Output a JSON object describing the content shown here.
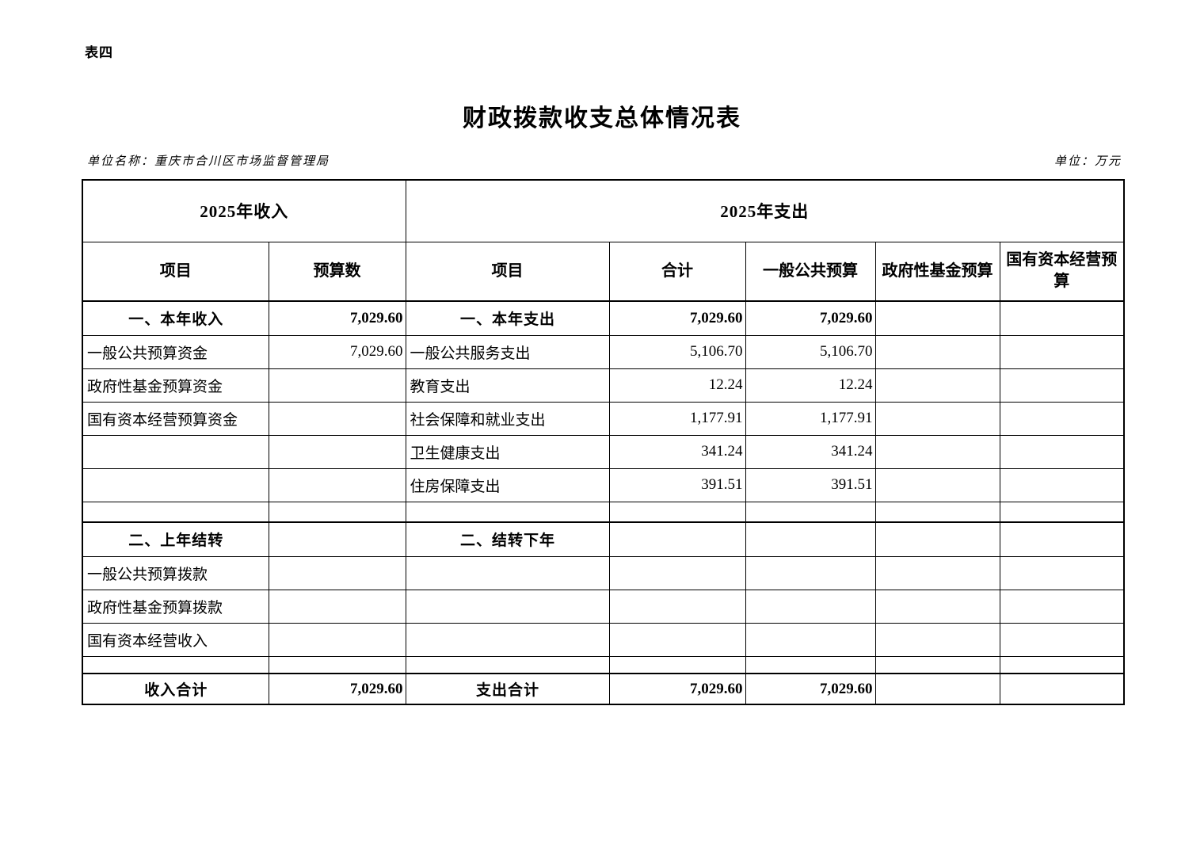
{
  "page": {
    "sheet_label": "表四",
    "title": "财政拨款收支总体情况表",
    "unit_name": "单位名称：重庆市合川区市场监督管理局",
    "unit_measure": "单位：万元"
  },
  "colors": {
    "text": "#000000",
    "border": "#000000",
    "background": "#ffffff"
  },
  "table": {
    "group_headers": {
      "income": "2025年收入",
      "expenditure": "2025年支出"
    },
    "column_headers": [
      "项目",
      "预算数",
      "项目",
      "合计",
      "一般公共预算",
      "政府性基金预算",
      "国有资本经营预算"
    ],
    "rows": [
      {
        "type": "section",
        "income_item": "一、本年收入",
        "income_budget": "7,029.60",
        "expense_item": "一、本年支出",
        "expense_total": "7,029.60",
        "general_public_budget": "7,029.60",
        "government_fund_budget": "",
        "state_capital_budget": ""
      },
      {
        "type": "data",
        "income_item": "一般公共预算资金",
        "income_budget": "7,029.60",
        "expense_item": "一般公共服务支出",
        "expense_total": "5,106.70",
        "general_public_budget": "5,106.70",
        "government_fund_budget": "",
        "state_capital_budget": ""
      },
      {
        "type": "data",
        "income_item": "政府性基金预算资金",
        "income_budget": "",
        "expense_item": "教育支出",
        "expense_total": "12.24",
        "general_public_budget": "12.24",
        "government_fund_budget": "",
        "state_capital_budget": ""
      },
      {
        "type": "data",
        "income_item": "国有资本经营预算资金",
        "income_budget": "",
        "expense_item": "社会保障和就业支出",
        "expense_total": "1,177.91",
        "general_public_budget": "1,177.91",
        "government_fund_budget": "",
        "state_capital_budget": ""
      },
      {
        "type": "data",
        "income_item": "",
        "income_budget": "",
        "expense_item": "卫生健康支出",
        "expense_total": "341.24",
        "general_public_budget": "341.24",
        "government_fund_budget": "",
        "state_capital_budget": ""
      },
      {
        "type": "data",
        "income_item": "",
        "income_budget": "",
        "expense_item": "住房保障支出",
        "expense_total": "391.51",
        "general_public_budget": "391.51",
        "government_fund_budget": "",
        "state_capital_budget": ""
      },
      {
        "type": "spacer",
        "income_item": "",
        "income_budget": "",
        "expense_item": "",
        "expense_total": "",
        "general_public_budget": "",
        "government_fund_budget": "",
        "state_capital_budget": ""
      },
      {
        "type": "section",
        "income_item": "二、上年结转",
        "income_budget": "",
        "expense_item": "二、结转下年",
        "expense_total": "",
        "general_public_budget": "",
        "government_fund_budget": "",
        "state_capital_budget": ""
      },
      {
        "type": "data",
        "income_item": "一般公共预算拨款",
        "income_budget": "",
        "expense_item": "",
        "expense_total": "",
        "general_public_budget": "",
        "government_fund_budget": "",
        "state_capital_budget": ""
      },
      {
        "type": "data",
        "income_item": "政府性基金预算拨款",
        "income_budget": "",
        "expense_item": "",
        "expense_total": "",
        "general_public_budget": "",
        "government_fund_budget": "",
        "state_capital_budget": ""
      },
      {
        "type": "data",
        "income_item": "国有资本经营收入",
        "income_budget": "",
        "expense_item": "",
        "expense_total": "",
        "general_public_budget": "",
        "government_fund_budget": "",
        "state_capital_budget": ""
      },
      {
        "type": "spacer-sm",
        "income_item": "",
        "income_budget": "",
        "expense_item": "",
        "expense_total": "",
        "general_public_budget": "",
        "government_fund_budget": "",
        "state_capital_budget": ""
      },
      {
        "type": "total",
        "income_item": "收入合计",
        "income_budget": "7,029.60",
        "expense_item": "支出合计",
        "expense_total": "7,029.60",
        "general_public_budget": "7,029.60",
        "government_fund_budget": "",
        "state_capital_budget": ""
      }
    ]
  }
}
